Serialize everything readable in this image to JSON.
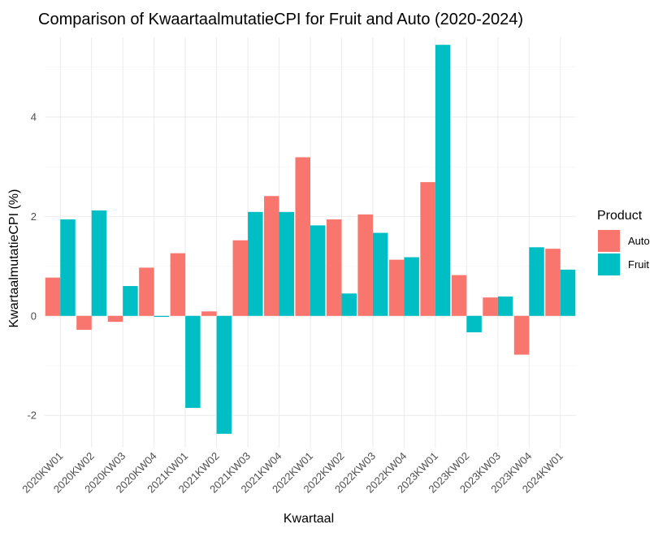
{
  "chart_data": {
    "type": "bar",
    "title": "Comparison of KwaartaalmutatieCPI for Fruit and Auto (2020-2024)",
    "xlabel": "Kwartaal",
    "ylabel": "KwartaalmutatieCPI (%)",
    "categories": [
      "2020KW01",
      "2020KW02",
      "2020KW03",
      "2020KW04",
      "2021KW01",
      "2021KW02",
      "2021KW03",
      "2021KW04",
      "2022KW01",
      "2022KW02",
      "2022KW03",
      "2022KW04",
      "2023KW01",
      "2023KW02",
      "2023KW03",
      "2023KW04",
      "2024KW01"
    ],
    "series": [
      {
        "name": "Auto",
        "color": "#F8766D",
        "values": [
          0.77,
          -0.28,
          -0.12,
          0.97,
          1.26,
          0.09,
          1.52,
          2.41,
          3.19,
          1.94,
          2.04,
          1.13,
          2.69,
          0.82,
          0.37,
          -0.78,
          1.35
        ]
      },
      {
        "name": "Fruit",
        "color": "#00BFC4",
        "values": [
          1.94,
          2.12,
          0.6,
          -0.02,
          -1.85,
          -2.37,
          2.09,
          2.09,
          1.82,
          0.45,
          1.67,
          1.18,
          5.45,
          -0.33,
          0.39,
          1.38,
          0.93
        ]
      }
    ],
    "ylim": [
      -2.65,
      5.6
    ],
    "yticks": [
      -2,
      0,
      2,
      4
    ],
    "grid": true,
    "legend": {
      "title": "Product",
      "position": "right"
    }
  }
}
